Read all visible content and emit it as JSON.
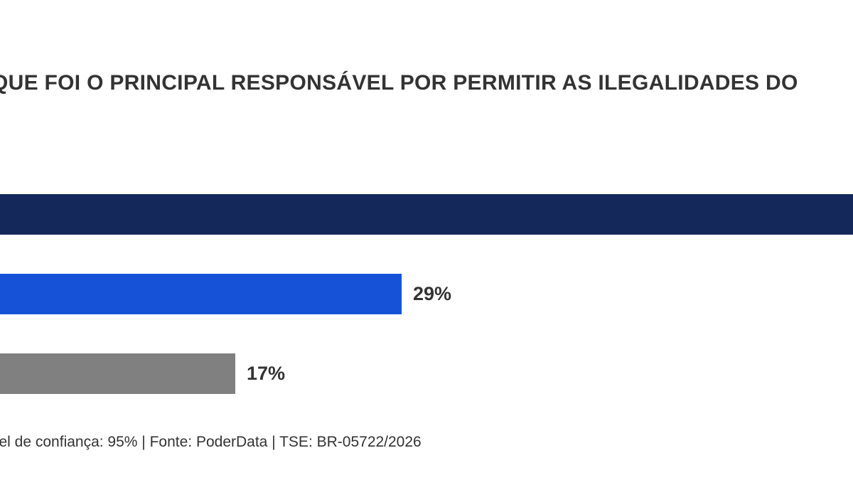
{
  "chart_data": {
    "type": "bar",
    "orientation": "horizontal",
    "title": "QUE FOI O PRINCIPAL RESPONSÁVEL POR PERMITIR AS ILEGALIDADES DO",
    "series": [
      {
        "value": 100,
        "value_label": "",
        "color": "#15285a"
      },
      {
        "value": 29,
        "value_label": "29%",
        "color": "#1552d8"
      },
      {
        "value": 17,
        "value_label": "17%",
        "color": "#808080"
      }
    ],
    "xlim": [
      0,
      58
    ],
    "grid": false
  },
  "footer": {
    "text": "vel de confiança: 95% | Fonte: PoderData | TSE: BR-05722/2026"
  }
}
